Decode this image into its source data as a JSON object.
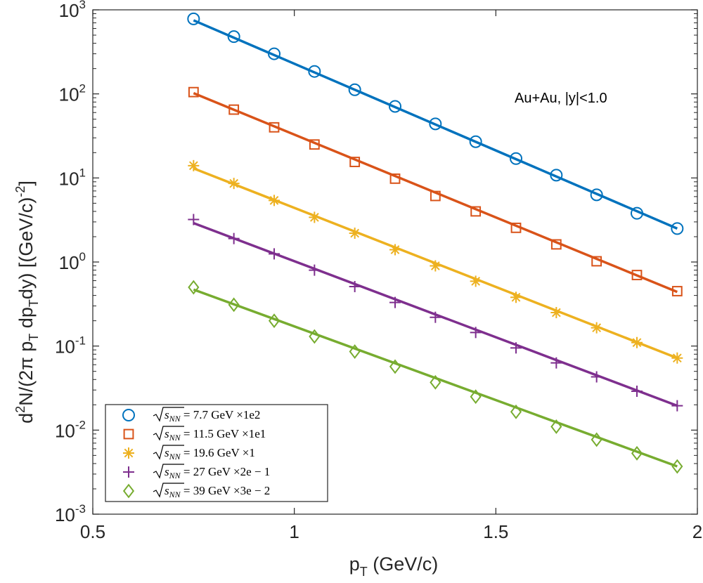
{
  "chart_data": {
    "type": "scatter",
    "xlabel": "p",
    "xlabel_sub": "T",
    "xlabel_rest": " (GeV/c)",
    "ylabel_parts": [
      "d",
      "2",
      "N/(2π p",
      "T",
      " dp",
      "T",
      "dy) [(GeV/c)",
      "-2",
      "]"
    ],
    "xlim": [
      0.5,
      2
    ],
    "ylim_log10": [
      -3,
      3
    ],
    "yscale": "log",
    "x_ticks": [
      0.5,
      1,
      1.5,
      2
    ],
    "x_tick_labels": [
      "0.5",
      "1",
      "1.5",
      "2"
    ],
    "y_tick_exponents": [
      -3,
      -2,
      -1,
      0,
      1,
      2,
      3
    ],
    "y_tick_base": "10",
    "y_tick_exp_labels": [
      "-3",
      "-2",
      "-1",
      "0",
      "1",
      "2",
      "3"
    ],
    "grid": false,
    "annotation": "Au+Au, |y|<1.0",
    "legend_position": "bottom-left",
    "x": [
      0.75,
      0.85,
      0.95,
      1.05,
      1.15,
      1.25,
      1.35,
      1.45,
      1.55,
      1.65,
      1.75,
      1.85,
      1.95
    ],
    "series": [
      {
        "name_sqrt": "s",
        "name_sub": "NN",
        "name_rest": " = 7.7 GeV ×1e2",
        "marker": "circle",
        "color": "#0072BD",
        "values": [
          780,
          480,
          300,
          185,
          112,
          71,
          44,
          27,
          17,
          10.8,
          6.3,
          3.8,
          2.5
        ],
        "fit": [
          750,
          2.5
        ]
      },
      {
        "name_sqrt": "s",
        "name_sub": "NN",
        "name_rest": " = 11.5 GeV ×1e1",
        "marker": "square",
        "color": "#D95319",
        "values": [
          105,
          65,
          40,
          25,
          15.5,
          9.8,
          6.1,
          4.0,
          2.55,
          1.62,
          1.02,
          0.7,
          0.45
        ],
        "fit": [
          102,
          0.44
        ]
      },
      {
        "name_sqrt": "s",
        "name_sub": "NN",
        "name_rest": " = 19.6 GeV ×1",
        "marker": "asterisk",
        "color": "#EDB120",
        "values": [
          14,
          8.6,
          5.4,
          3.4,
          2.2,
          1.4,
          0.9,
          0.59,
          0.38,
          0.25,
          0.165,
          0.11,
          0.072
        ],
        "fit": [
          13,
          0.072
        ]
      },
      {
        "name_sqrt": "s",
        "name_sub": "NN",
        "name_rest": " = 27 GeV ×2e − 1",
        "marker": "plus",
        "color": "#7E2F8E",
        "values": [
          3.2,
          1.9,
          1.25,
          0.8,
          0.51,
          0.33,
          0.22,
          0.145,
          0.095,
          0.063,
          0.043,
          0.029,
          0.0195
        ],
        "fit": [
          2.9,
          0.0195
        ]
      },
      {
        "name_sqrt": "s",
        "name_sub": "NN",
        "name_rest": " = 39 GeV ×3e − 2",
        "marker": "diamond",
        "color": "#77AC30",
        "values": [
          0.5,
          0.31,
          0.2,
          0.13,
          0.086,
          0.057,
          0.037,
          0.025,
          0.0165,
          0.011,
          0.0077,
          0.0053,
          0.0037
        ],
        "fit": [
          0.47,
          0.0037
        ]
      }
    ]
  }
}
